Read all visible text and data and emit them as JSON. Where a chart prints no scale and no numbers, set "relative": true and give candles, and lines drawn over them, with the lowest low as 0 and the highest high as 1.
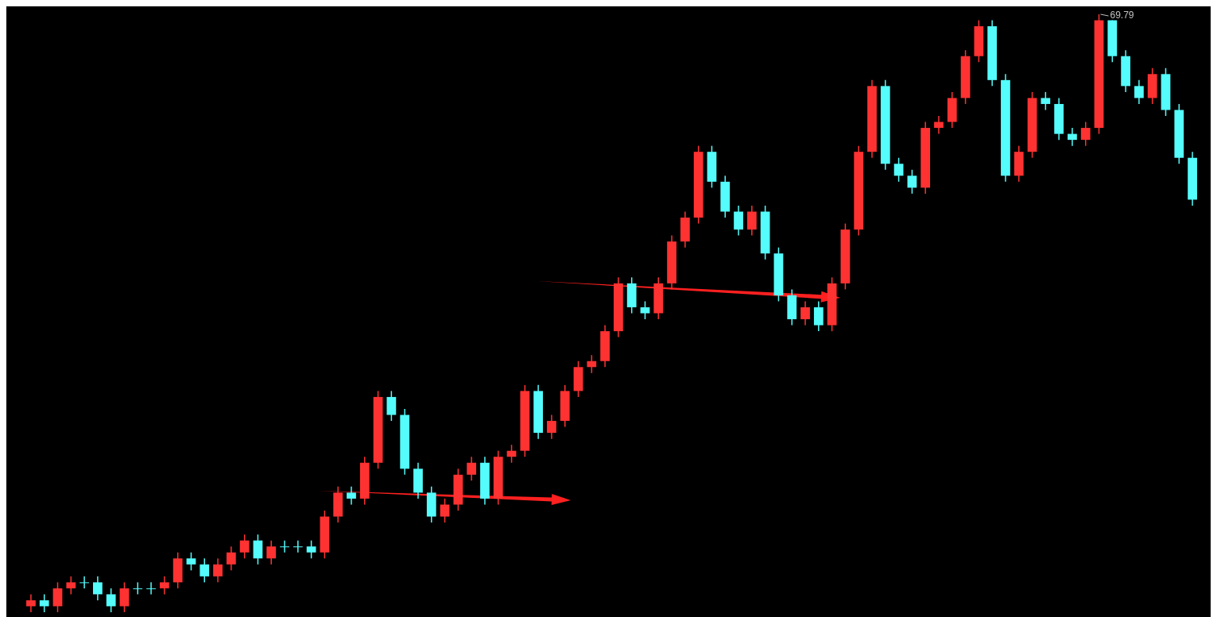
{
  "chart_data": {
    "type": "candlestick",
    "relative": true,
    "categories": [
      null,
      null,
      null,
      null,
      null,
      null,
      null,
      null,
      null,
      null,
      null,
      null,
      null,
      null,
      null,
      null,
      null,
      null,
      null,
      null,
      null,
      null,
      null,
      null,
      null,
      null,
      null,
      null,
      null,
      null,
      null,
      null,
      null,
      null,
      null,
      null,
      null,
      null,
      null,
      null,
      null,
      null,
      null,
      null,
      null,
      null,
      null,
      null,
      null,
      null,
      null,
      null,
      null,
      null,
      null,
      null,
      null,
      null,
      null,
      null,
      null,
      null,
      null,
      null,
      null,
      null,
      null,
      null,
      null,
      null,
      null,
      null,
      null,
      null,
      null,
      null,
      null,
      null,
      null,
      null,
      null,
      null,
      null,
      null,
      null,
      null,
      null,
      null
    ],
    "ohlc": [
      [
        0.01,
        0.03,
        0,
        0.02
      ],
      [
        0.02,
        0.03,
        0,
        0.01
      ],
      [
        0.01,
        0.05,
        0,
        0.04
      ],
      [
        0.04,
        0.06,
        0.03,
        0.05
      ],
      [
        0.05,
        0.06,
        0.04,
        0.05
      ],
      [
        0.05,
        0.06,
        0.02,
        0.03
      ],
      [
        0.03,
        0.04,
        0,
        0.01
      ],
      [
        0.01,
        0.05,
        0,
        0.04
      ],
      [
        0.04,
        0.05,
        0.03,
        0.04
      ],
      [
        0.04,
        0.05,
        0.03,
        0.04
      ],
      [
        0.04,
        0.06,
        0.03,
        0.05
      ],
      [
        0.05,
        0.1,
        0.04,
        0.09
      ],
      [
        0.09,
        0.1,
        0.07,
        0.08
      ],
      [
        0.08,
        0.09,
        0.05,
        0.06
      ],
      [
        0.06,
        0.09,
        0.05,
        0.08
      ],
      [
        0.08,
        0.11,
        0.07,
        0.1
      ],
      [
        0.1,
        0.13,
        0.09,
        0.12
      ],
      [
        0.12,
        0.13,
        0.08,
        0.09
      ],
      [
        0.09,
        0.12,
        0.08,
        0.11
      ],
      [
        0.11,
        0.12,
        0.1,
        0.11
      ],
      [
        0.11,
        0.12,
        0.1,
        0.11
      ],
      [
        0.11,
        0.12,
        0.09,
        0.1
      ],
      [
        0.1,
        0.17,
        0.09,
        0.16
      ],
      [
        0.16,
        0.21,
        0.15,
        0.2
      ],
      [
        0.2,
        0.21,
        0.18,
        0.19
      ],
      [
        0.19,
        0.26,
        0.18,
        0.25
      ],
      [
        0.25,
        0.37,
        0.24,
        0.36
      ],
      [
        0.36,
        0.37,
        0.32,
        0.33
      ],
      [
        0.33,
        0.34,
        0.23,
        0.24
      ],
      [
        0.24,
        0.25,
        0.19,
        0.2
      ],
      [
        0.2,
        0.21,
        0.15,
        0.16
      ],
      [
        0.16,
        0.19,
        0.15,
        0.18
      ],
      [
        0.18,
        0.24,
        0.17,
        0.23
      ],
      [
        0.23,
        0.26,
        0.22,
        0.25
      ],
      [
        0.25,
        0.26,
        0.18,
        0.19
      ],
      [
        0.19,
        0.27,
        0.18,
        0.26
      ],
      [
        0.26,
        0.28,
        0.25,
        0.27
      ],
      [
        0.27,
        0.38,
        0.26,
        0.37
      ],
      [
        0.37,
        0.38,
        0.29,
        0.3
      ],
      [
        0.3,
        0.33,
        0.29,
        0.32
      ],
      [
        0.32,
        0.38,
        0.31,
        0.37
      ],
      [
        0.37,
        0.42,
        0.36,
        0.41
      ],
      [
        0.41,
        0.43,
        0.4,
        0.42
      ],
      [
        0.42,
        0.48,
        0.41,
        0.47
      ],
      [
        0.47,
        0.56,
        0.46,
        0.55
      ],
      [
        0.55,
        0.56,
        0.5,
        0.51
      ],
      [
        0.51,
        0.52,
        0.49,
        0.5
      ],
      [
        0.5,
        0.56,
        0.49,
        0.55
      ],
      [
        0.55,
        0.63,
        0.54,
        0.62
      ],
      [
        0.62,
        0.67,
        0.61,
        0.66
      ],
      [
        0.66,
        0.78,
        0.65,
        0.77
      ],
      [
        0.77,
        0.78,
        0.71,
        0.72
      ],
      [
        0.72,
        0.73,
        0.66,
        0.67
      ],
      [
        0.67,
        0.68,
        0.63,
        0.64
      ],
      [
        0.64,
        0.68,
        0.63,
        0.67
      ],
      [
        0.67,
        0.68,
        0.59,
        0.6
      ],
      [
        0.6,
        0.61,
        0.52,
        0.53
      ],
      [
        0.53,
        0.54,
        0.48,
        0.49
      ],
      [
        0.49,
        0.52,
        0.48,
        0.51
      ],
      [
        0.51,
        0.52,
        0.47,
        0.48
      ],
      [
        0.48,
        0.56,
        0.47,
        0.55
      ],
      [
        0.55,
        0.65,
        0.54,
        0.64
      ],
      [
        0.64,
        0.78,
        0.63,
        0.77
      ],
      [
        0.77,
        0.89,
        0.76,
        0.88
      ],
      [
        0.88,
        0.89,
        0.74,
        0.75
      ],
      [
        0.75,
        0.76,
        0.72,
        0.73
      ],
      [
        0.73,
        0.74,
        0.7,
        0.71
      ],
      [
        0.71,
        0.82,
        0.7,
        0.81
      ],
      [
        0.81,
        0.83,
        0.8,
        0.82
      ],
      [
        0.82,
        0.87,
        0.81,
        0.86
      ],
      [
        0.86,
        0.94,
        0.85,
        0.93
      ],
      [
        0.93,
        0.99,
        0.92,
        0.98
      ],
      [
        0.98,
        0.99,
        0.88,
        0.89
      ],
      [
        0.89,
        0.9,
        0.72,
        0.73
      ],
      [
        0.73,
        0.78,
        0.72,
        0.77
      ],
      [
        0.77,
        0.87,
        0.76,
        0.86
      ],
      [
        0.86,
        0.87,
        0.84,
        0.85
      ],
      [
        0.85,
        0.86,
        0.79,
        0.8
      ],
      [
        0.8,
        0.81,
        0.78,
        0.79
      ],
      [
        0.79,
        0.82,
        0.78,
        0.81
      ],
      [
        0.81,
        1,
        0.8,
        0.99
      ],
      [
        0.99,
        0.99,
        0.92,
        0.93
      ],
      [
        0.93,
        0.94,
        0.87,
        0.88
      ],
      [
        0.88,
        0.89,
        0.85,
        0.86
      ],
      [
        0.86,
        0.91,
        0.85,
        0.9
      ],
      [
        0.9,
        0.91,
        0.83,
        0.84
      ],
      [
        0.84,
        0.85,
        0.75,
        0.76
      ],
      [
        0.76,
        0.77,
        0.68,
        0.69
      ]
    ],
    "colors": [
      "#ff3232",
      "#54fcfc",
      "#ff3232",
      "#ff3232",
      "#54fcfc",
      "#54fcfc",
      "#54fcfc",
      "#ff3232",
      "#54fcfc",
      "#54fcfc",
      "#ff3232",
      "#ff3232",
      "#54fcfc",
      "#54fcfc",
      "#ff3232",
      "#ff3232",
      "#ff3232",
      "#54fcfc",
      "#ff3232",
      "#54fcfc",
      "#54fcfc",
      "#54fcfc",
      "#ff3232",
      "#ff3232",
      "#54fcfc",
      "#ff3232",
      "#ff3232",
      "#54fcfc",
      "#54fcfc",
      "#54fcfc",
      "#54fcfc",
      "#ff3232",
      "#ff3232",
      "#ff3232",
      "#54fcfc",
      "#ff3232",
      "#ff3232",
      "#ff3232",
      "#54fcfc",
      "#ff3232",
      "#ff3232",
      "#ff3232",
      "#ff3232",
      "#ff3232",
      "#ff3232",
      "#54fcfc",
      "#54fcfc",
      "#ff3232",
      "#ff3232",
      "#ff3232",
      "#ff3232",
      "#54fcfc",
      "#54fcfc",
      "#54fcfc",
      "#ff3232",
      "#54fcfc",
      "#54fcfc",
      "#54fcfc",
      "#ff3232",
      "#54fcfc",
      "#ff3232",
      "#ff3232",
      "#ff3232",
      "#ff3232",
      "#54fcfc",
      "#54fcfc",
      "#54fcfc",
      "#ff3232",
      "#ff3232",
      "#ff3232",
      "#ff3232",
      "#ff3232",
      "#54fcfc",
      "#54fcfc",
      "#ff3232",
      "#ff3232",
      "#54fcfc",
      "#54fcfc",
      "#54fcfc",
      "#ff3232",
      "#ff3232",
      "#54fcfc",
      "#54fcfc",
      "#54fcfc",
      "#ff3232",
      "#54fcfc",
      "#54fcfc",
      "#54fcfc"
    ],
    "annotations": [
      "69.79"
    ]
  }
}
